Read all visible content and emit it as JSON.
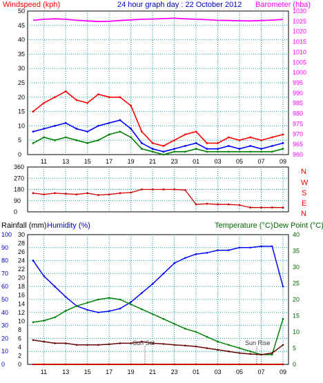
{
  "header": {
    "title": "24 hour graph day : 22 October 2012",
    "left_label": "Windspeed (kph)",
    "right_label": "Barometer (hba)"
  },
  "wind_dir_labels": [
    "N",
    "W",
    "S",
    "E",
    "N"
  ],
  "bottom_header": {
    "rain_label": "Rainfall (mm)",
    "humidity_label": "Humidity (%)",
    "temp_label": "Temperature (°C)",
    "dew_label": "Dew Point (°C)"
  },
  "annotations": {
    "sunset": "Sun Set",
    "sunrise": "Sun Rise"
  },
  "x_ticks": [
    "11",
    "13",
    "15",
    "17",
    "19",
    "21",
    "23",
    "01",
    "03",
    "05",
    "07",
    "09"
  ],
  "colors": {
    "wind": "#ff0000",
    "gust_avg": "#0000ff",
    "green": "#008000",
    "barometer": "#ff00ff",
    "direction": "#cc0000",
    "humidity": "#0000ff",
    "temperature": "#008000",
    "dewpoint": "#660000",
    "rain": "#cc0000",
    "grid": "#00a0a0"
  },
  "chart_data": [
    {
      "type": "line",
      "title": "24 hour graph day : 22 October 2012",
      "ylabel": "Windspeed (kph)",
      "y2label": "Barometer (hba)",
      "ylim": [
        0,
        50
      ],
      "y2lim": [
        960,
        1030
      ],
      "yticks": [
        0,
        5,
        10,
        15,
        20,
        25,
        30,
        35,
        40,
        45,
        50
      ],
      "y2ticks": [
        960,
        965,
        970,
        975,
        980,
        985,
        990,
        995,
        1000,
        1005,
        1010,
        1015,
        1020,
        1025,
        1030
      ],
      "x": [
        "10",
        "11",
        "12",
        "13",
        "14",
        "15",
        "16",
        "17",
        "18",
        "19",
        "20",
        "21",
        "22",
        "23",
        "00",
        "01",
        "02",
        "03",
        "04",
        "05",
        "06",
        "07",
        "08",
        "09"
      ],
      "series": [
        {
          "values": [
            15,
            18,
            20,
            22,
            19,
            18,
            21,
            20,
            20,
            17,
            8,
            4,
            3,
            5,
            7,
            8,
            4,
            4,
            6,
            5,
            6,
            5,
            6,
            7
          ]
        },
        {
          "values": [
            8,
            9,
            10,
            11,
            9,
            8,
            10,
            11,
            12,
            9,
            4,
            2,
            1,
            2,
            3,
            4,
            2,
            2,
            3,
            2,
            3,
            2,
            3,
            4
          ]
        },
        {
          "values": [
            4,
            6,
            5,
            6,
            5,
            4,
            5,
            7,
            8,
            6,
            2,
            1,
            0,
            1,
            1,
            2,
            1,
            1,
            1,
            1,
            1,
            1,
            1,
            2
          ]
        },
        {
          "axis": "y2",
          "values": [
            1025.5,
            1026,
            1026.2,
            1026,
            1025.5,
            1025.2,
            1024.9,
            1025,
            1025.4,
            1025.7,
            1026,
            1026.1,
            1026.3,
            1026.5,
            1026.2,
            1026,
            1025.8,
            1025.5,
            1025.4,
            1025.3,
            1025.2,
            1025.4,
            1025.6,
            1025.9
          ]
        }
      ]
    },
    {
      "type": "line",
      "ylabel": "",
      "ylim": [
        0,
        360
      ],
      "yticks": [
        0,
        90,
        180,
        270,
        360
      ],
      "x": [
        "10",
        "11",
        "12",
        "13",
        "14",
        "15",
        "16",
        "17",
        "18",
        "19",
        "20",
        "21",
        "22",
        "23",
        "00",
        "01",
        "02",
        "03",
        "04",
        "05",
        "06",
        "07",
        "08",
        "09"
      ],
      "series": [
        {
          "values": [
            150,
            140,
            150,
            145,
            140,
            150,
            135,
            140,
            150,
            155,
            180,
            180,
            180,
            180,
            175,
            60,
            65,
            60,
            60,
            55,
            35,
            35,
            35,
            35
          ]
        }
      ]
    },
    {
      "type": "line",
      "ylabel": "Rainfall (mm)",
      "y2label": "Temperature (°C) Dew Point (°C)",
      "humidity_ticks": [
        0,
        10,
        20,
        30,
        40,
        50,
        60,
        70,
        80,
        90,
        100
      ],
      "rain_ticks": [
        0,
        2,
        4,
        6,
        8,
        10,
        12,
        14,
        16,
        18,
        20,
        22,
        24,
        26,
        28,
        30
      ],
      "temp_ticks": [
        0,
        5,
        10,
        15,
        20,
        25,
        30,
        35,
        40
      ],
      "x": [
        "10",
        "11",
        "12",
        "13",
        "14",
        "15",
        "16",
        "17",
        "18",
        "19",
        "20",
        "21",
        "22",
        "23",
        "00",
        "01",
        "02",
        "03",
        "04",
        "05",
        "06",
        "07",
        "08",
        "09"
      ],
      "series": [
        {
          "name": "Humidity (%)",
          "axis": "humidity",
          "values": [
            80,
            68,
            60,
            52,
            45,
            42,
            40,
            41,
            43,
            48,
            55,
            62,
            70,
            78,
            82,
            85,
            86,
            88,
            88,
            90,
            90,
            91,
            91,
            60
          ]
        },
        {
          "name": "Temperature (°C)",
          "axis": "temp",
          "values": [
            13,
            13.5,
            14.5,
            16.5,
            18,
            19,
            20,
            20.5,
            20,
            18.5,
            17,
            15.5,
            14,
            12.5,
            11,
            10,
            8.5,
            7,
            6,
            5,
            4,
            3,
            3,
            14
          ]
        },
        {
          "name": "Dew Point (°C)",
          "axis": "temp",
          "values": [
            7.5,
            7,
            6.5,
            6.5,
            6,
            6,
            6,
            6.2,
            6.5,
            6.5,
            7,
            6.5,
            6.3,
            6,
            5.8,
            5.5,
            5,
            4.5,
            4,
            3.5,
            3.2,
            3,
            3.5,
            6
          ]
        },
        {
          "name": "Rainfall (mm)",
          "axis": "rain",
          "values": [
            0,
            0,
            0,
            0,
            0,
            0,
            0,
            0,
            0,
            0,
            0,
            0,
            0,
            0,
            0,
            0,
            0,
            0,
            0,
            0,
            0,
            0,
            0,
            0
          ]
        }
      ]
    }
  ]
}
